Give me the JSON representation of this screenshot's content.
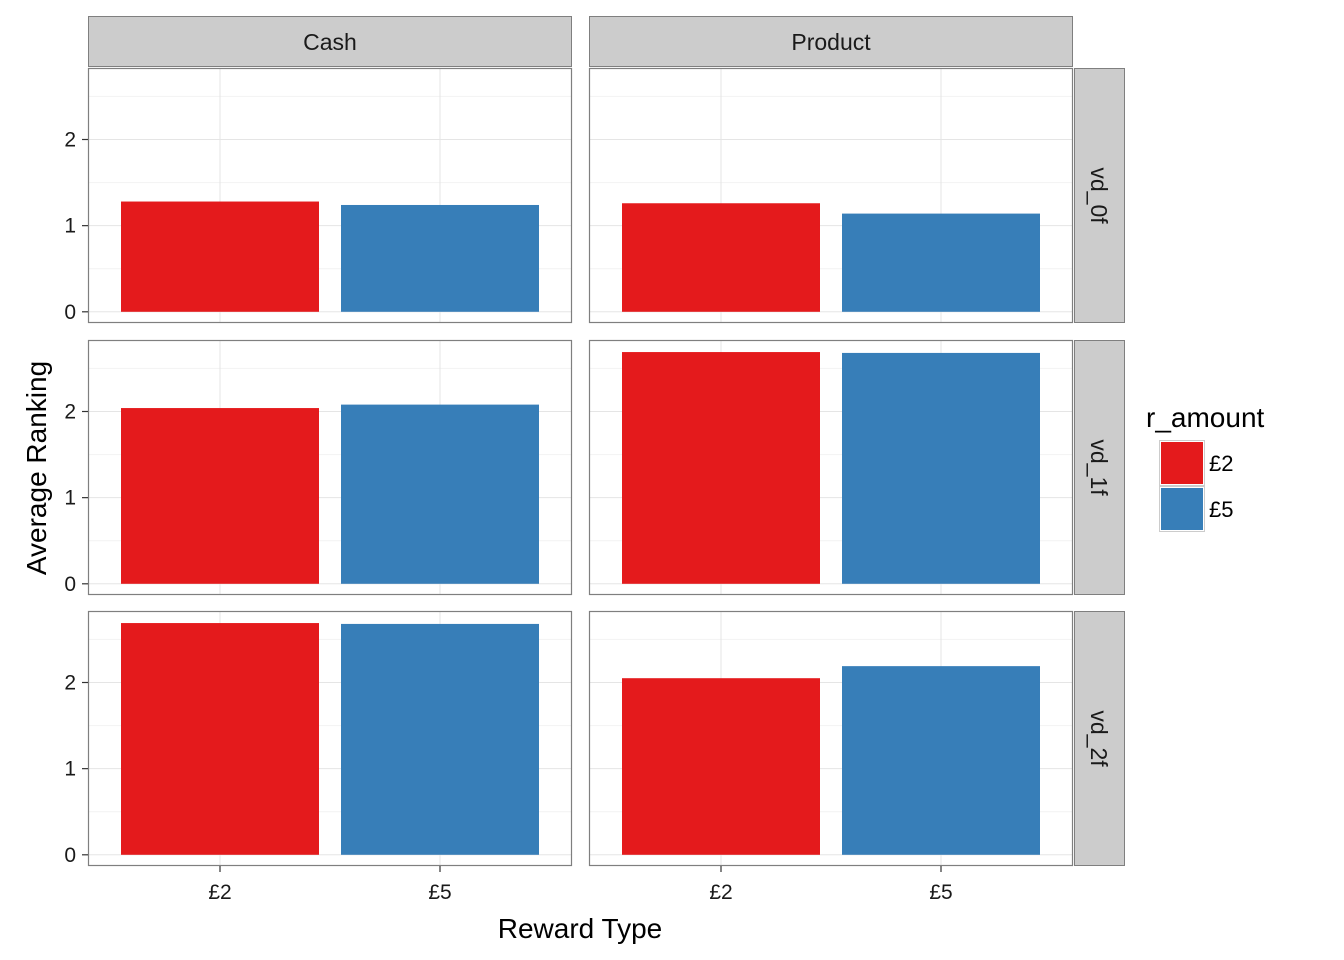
{
  "chart_data": {
    "type": "bar",
    "xlabel": "Reward Type",
    "ylabel": "Average Ranking",
    "categories": [
      "£2",
      "£5"
    ],
    "col_facets": [
      "Cash",
      "Product"
    ],
    "row_facets": [
      "vd_0f",
      "vd_1f",
      "vd_2f"
    ],
    "yticks": [
      "0",
      "1",
      "2"
    ],
    "legend": {
      "title": "r_amount",
      "position": "right",
      "items": [
        {
          "label": "£2",
          "color": "#e41a1c"
        },
        {
          "label": "£5",
          "color": "#377eb8"
        }
      ]
    },
    "panels": [
      {
        "row": "vd_0f",
        "col": "Cash",
        "values": [
          1.28,
          1.24
        ]
      },
      {
        "row": "vd_0f",
        "col": "Product",
        "values": [
          1.26,
          1.14
        ]
      },
      {
        "row": "vd_1f",
        "col": "Cash",
        "values": [
          2.04,
          2.08
        ]
      },
      {
        "row": "vd_1f",
        "col": "Product",
        "values": [
          2.69,
          2.68
        ]
      },
      {
        "row": "vd_2f",
        "col": "Cash",
        "values": [
          2.69,
          2.68
        ]
      },
      {
        "row": "vd_2f",
        "col": "Product",
        "values": [
          2.05,
          2.19
        ]
      }
    ],
    "ylim": [
      -0.13,
      2.83
    ],
    "grid": true
  }
}
